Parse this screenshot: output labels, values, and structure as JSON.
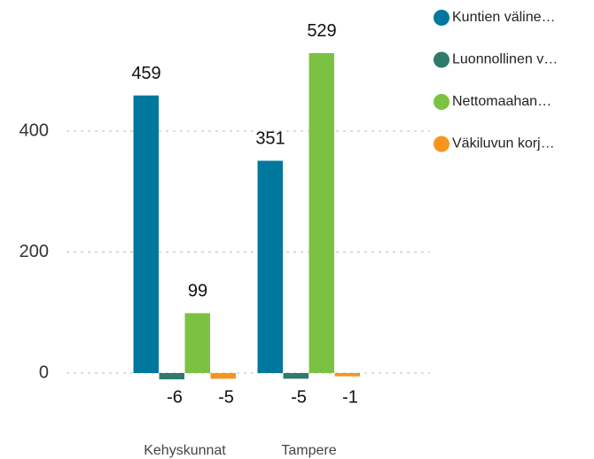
{
  "chart_data": {
    "type": "bar",
    "categories": [
      "Kehyskunnat",
      "Tampere"
    ],
    "series": [
      {
        "name": "Kuntien väline…",
        "color": "#00789e",
        "values": [
          459,
          351
        ]
      },
      {
        "name": "Luonnollinen v…",
        "color": "#2f7a6c",
        "values": [
          -6,
          -5
        ]
      },
      {
        "name": "Nettomaahan…",
        "color": "#7cc242",
        "values": [
          99,
          529
        ]
      },
      {
        "name": "Väkiluvun korj…",
        "color": "#f7941d",
        "values": [
          -5,
          -1
        ]
      }
    ],
    "ylim": [
      0,
      600
    ],
    "yticks": [
      0,
      200,
      400
    ],
    "grid": true
  }
}
